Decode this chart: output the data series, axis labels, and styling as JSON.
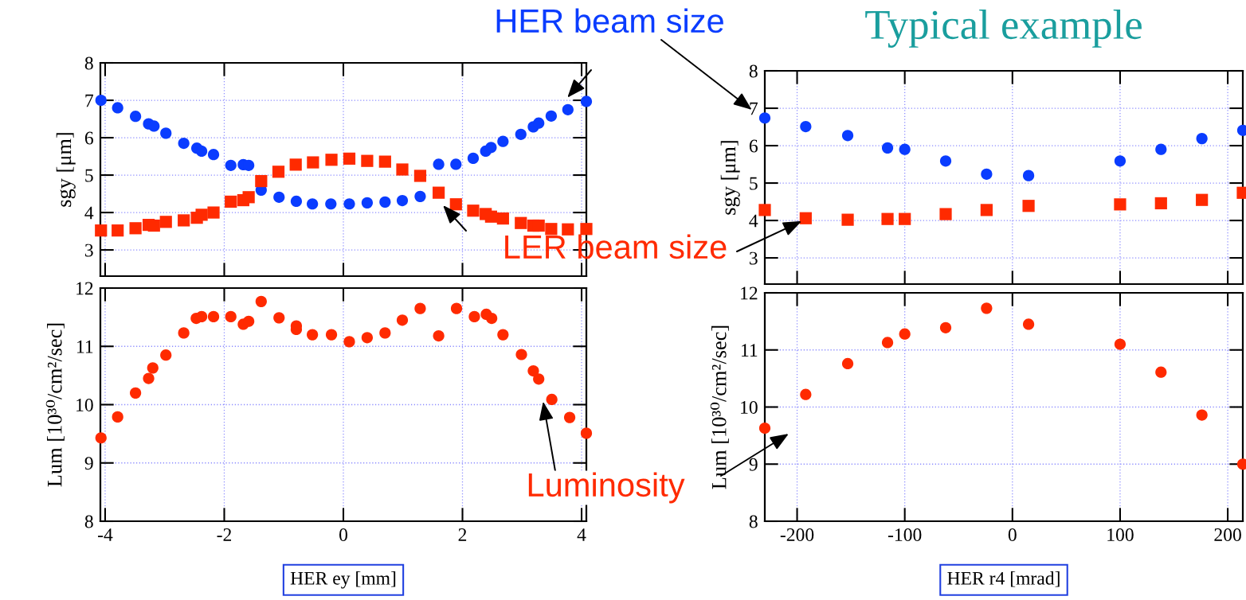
{
  "chart_data": [
    {
      "type": "scatter",
      "ylabel": "sgy [μm]",
      "xlim": [
        -4.08,
        4.08
      ],
      "xticks": [
        -4,
        -2,
        0,
        2,
        4
      ],
      "ylim": [
        2.3,
        8
      ],
      "yticks": [
        3,
        4,
        5,
        6,
        7,
        8
      ],
      "grid": true,
      "tick_labels": "y",
      "series": [
        {
          "color": "#0a3cff",
          "marker": "circle",
          "x": [
            -4.07,
            -3.79,
            -3.49,
            -3.27,
            -3.18,
            -2.98,
            -2.68,
            -2.46,
            -2.38,
            -2.18,
            -1.89,
            -1.68,
            -1.59,
            -1.38,
            -1.08,
            -0.79,
            -0.52,
            -0.21,
            0.1,
            0.4,
            0.7,
            0.99,
            1.29,
            1.6,
            1.89,
            2.18,
            2.39,
            2.48,
            2.68,
            2.98,
            3.19,
            3.28,
            3.49,
            3.77,
            4.08
          ],
          "values": [
            7.0,
            6.8,
            6.57,
            6.37,
            6.31,
            6.12,
            5.85,
            5.72,
            5.64,
            5.55,
            5.26,
            5.28,
            5.26,
            4.6,
            4.41,
            4.3,
            4.23,
            4.23,
            4.23,
            4.26,
            4.28,
            4.32,
            4.43,
            5.29,
            5.29,
            5.45,
            5.64,
            5.74,
            5.9,
            6.09,
            6.29,
            6.39,
            6.58,
            6.75,
            6.97
          ]
        },
        {
          "color": "#ff2a00",
          "marker": "square",
          "x": [
            -4.07,
            -3.79,
            -3.49,
            -3.27,
            -3.18,
            -2.98,
            -2.68,
            -2.46,
            -2.38,
            -2.18,
            -1.89,
            -1.68,
            -1.59,
            -1.38,
            -1.09,
            -0.8,
            -0.51,
            -0.2,
            0.1,
            0.4,
            0.7,
            0.99,
            1.29,
            1.6,
            1.89,
            2.18,
            2.39,
            2.48,
            2.68,
            2.98,
            3.19,
            3.28,
            3.49,
            3.77,
            4.08
          ],
          "values": [
            3.52,
            3.52,
            3.58,
            3.67,
            3.65,
            3.75,
            3.79,
            3.86,
            3.94,
            4.0,
            4.29,
            4.33,
            4.41,
            4.84,
            5.09,
            5.28,
            5.34,
            5.41,
            5.44,
            5.38,
            5.36,
            5.15,
            4.98,
            4.53,
            4.22,
            4.05,
            3.96,
            3.89,
            3.84,
            3.72,
            3.65,
            3.65,
            3.56,
            3.55,
            3.56
          ]
        }
      ],
      "annotations": [
        "HER beam size",
        "LER beam size"
      ]
    },
    {
      "type": "scatter",
      "xlabel": "HER ey [mm]",
      "ylabel": "Lum [10³⁰/cm²/sec]",
      "xlim": [
        -4.08,
        4.08
      ],
      "xticks": [
        -4,
        -2,
        0,
        2,
        4
      ],
      "ylim": [
        8,
        12
      ],
      "yticks": [
        8,
        9,
        10,
        11,
        12
      ],
      "grid": true,
      "series": [
        {
          "color": "#ff2a00",
          "marker": "circle",
          "x": [
            -4.07,
            -3.79,
            -3.49,
            -3.27,
            -3.2,
            -2.98,
            -2.68,
            -2.47,
            -2.38,
            -2.18,
            -1.89,
            -1.68,
            -1.59,
            -1.38,
            -1.08,
            -0.79,
            -0.79,
            -0.52,
            -0.2,
            0.1,
            0.4,
            0.7,
            0.99,
            1.29,
            1.6,
            1.9,
            2.2,
            2.4,
            2.49,
            2.68,
            2.99,
            3.19,
            3.28,
            3.5,
            3.8,
            4.08
          ],
          "values": [
            9.43,
            9.79,
            10.2,
            10.45,
            10.63,
            10.85,
            11.23,
            11.48,
            11.51,
            11.51,
            11.51,
            11.38,
            11.43,
            11.77,
            11.49,
            11.35,
            11.29,
            11.2,
            11.2,
            11.08,
            11.15,
            11.23,
            11.45,
            11.65,
            11.18,
            11.65,
            11.51,
            11.55,
            11.48,
            11.2,
            10.86,
            10.58,
            10.44,
            10.09,
            9.78,
            9.51
          ]
        }
      ],
      "annotations": [
        "Luminosity"
      ]
    },
    {
      "type": "scatter",
      "title": "Typical example",
      "ylabel": "sgy [μm]",
      "xlim": [
        -230,
        214
      ],
      "xticks": [
        -200,
        -100,
        0,
        100,
        200
      ],
      "ylim": [
        2.3,
        8
      ],
      "yticks": [
        3,
        4,
        5,
        6,
        7,
        8
      ],
      "grid": true,
      "tick_labels": "y",
      "series": [
        {
          "color": "#0a3cff",
          "marker": "circle",
          "x": [
            -230,
            -192,
            -153,
            -116,
            -100,
            -62,
            -24,
            15,
            100,
            138,
            176,
            214
          ],
          "values": [
            6.74,
            6.51,
            6.27,
            5.94,
            5.9,
            5.59,
            5.24,
            5.2,
            5.59,
            5.9,
            6.19,
            6.41
          ]
        },
        {
          "color": "#ff2a00",
          "marker": "square",
          "x": [
            -230,
            -192,
            -153,
            -116,
            -100,
            -62,
            -24,
            15,
            100,
            138,
            176,
            214
          ],
          "values": [
            4.28,
            4.06,
            4.02,
            4.04,
            4.04,
            4.17,
            4.28,
            4.39,
            4.43,
            4.46,
            4.55,
            4.74
          ]
        }
      ]
    },
    {
      "type": "scatter",
      "xlabel": "HER r4 [mrad]",
      "ylabel": "Lum [10³⁰/cm²/sec]",
      "xlim": [
        -230,
        214
      ],
      "xticks": [
        -200,
        -100,
        0,
        100,
        200
      ],
      "ylim": [
        8,
        12
      ],
      "yticks": [
        8,
        9,
        10,
        11,
        12
      ],
      "grid": true,
      "series": [
        {
          "color": "#ff2a00",
          "marker": "circle",
          "x": [
            -230,
            -192,
            -153,
            -116,
            -100,
            -62,
            -24,
            15,
            100,
            138,
            176,
            214
          ],
          "values": [
            9.63,
            10.22,
            10.76,
            11.13,
            11.28,
            11.39,
            11.73,
            11.45,
            11.1,
            10.61,
            9.86,
            9.0
          ]
        }
      ]
    }
  ]
}
